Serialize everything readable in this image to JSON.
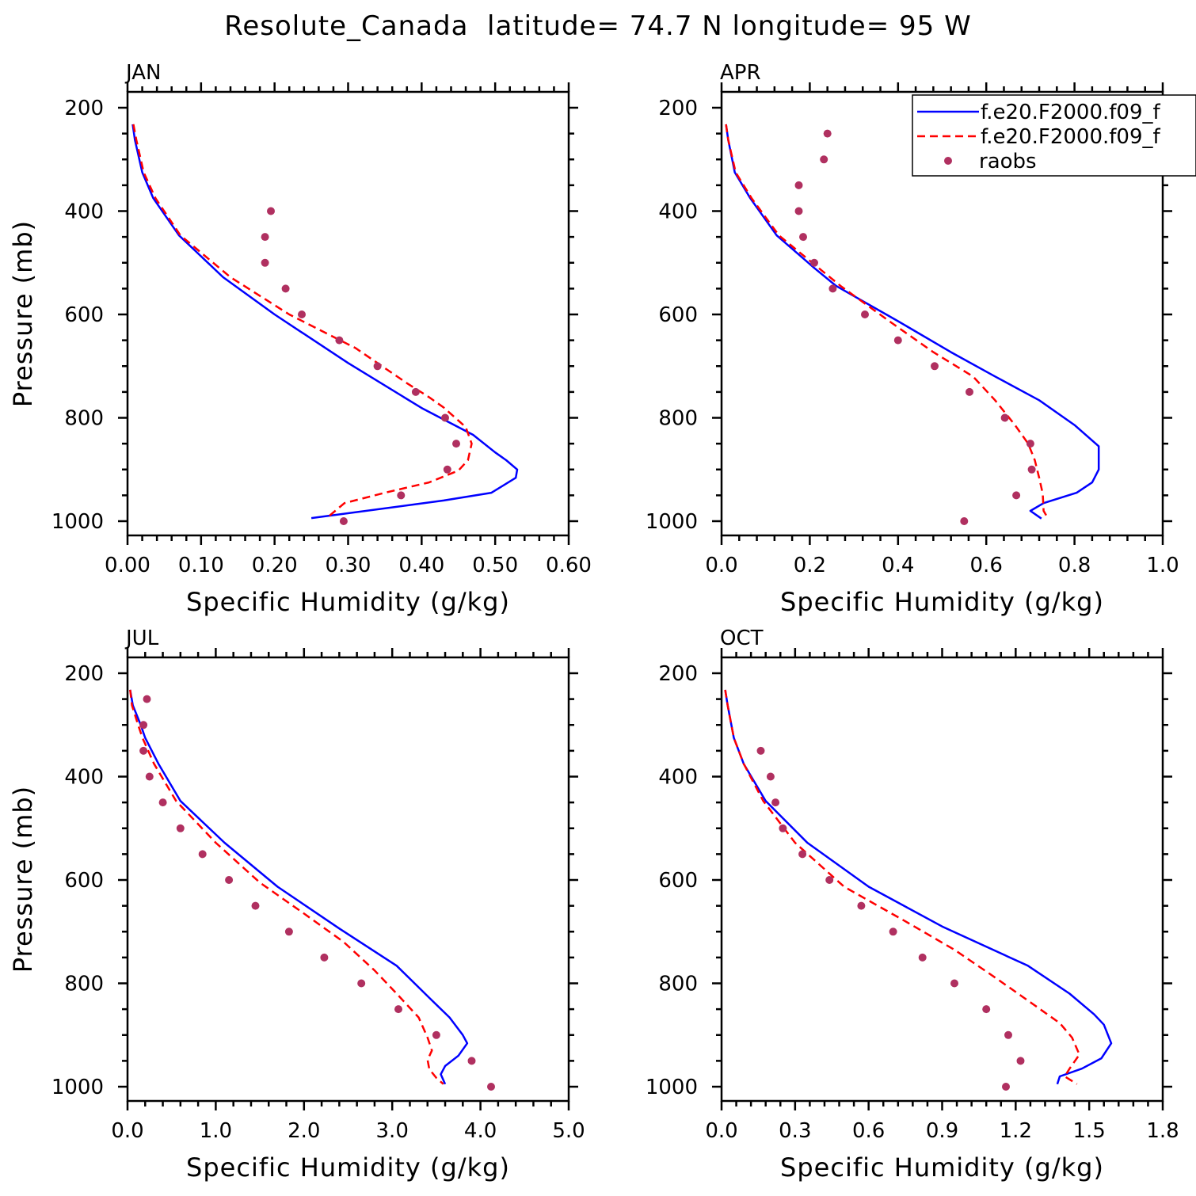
{
  "title": "Resolute_Canada  latitude= 74.7 N longitude= 95 W",
  "legend": {
    "entries": [
      {
        "label": "f.e20.F2000.f09_f",
        "style": "solid",
        "color": "#0000ff"
      },
      {
        "label": "f.e20.F2000.f09_f",
        "style": "dashed",
        "color": "#ff0000"
      },
      {
        "label": "raobs",
        "style": "dots",
        "color": "#b03060"
      }
    ]
  },
  "chart_data": [
    {
      "type": "line",
      "panel": "JAN",
      "xlabel": "Specific Humidity (g/kg)",
      "ylabel": "Pressure (mb)",
      "xlim": [
        0,
        0.6
      ],
      "ylim": [
        1000,
        200
      ],
      "xticks": [
        0,
        0.1,
        0.2,
        0.3,
        0.4,
        0.5,
        0.6
      ],
      "xticklabels": [
        "0.00",
        "0.10",
        "0.20",
        "0.30",
        "0.40",
        "0.50",
        "0.60"
      ],
      "yticks": [
        200,
        400,
        600,
        800,
        1000
      ],
      "yticklabels": [
        "200",
        "400",
        "600",
        "800",
        "1000"
      ],
      "series": [
        {
          "style": "solid",
          "color": "#0000ff",
          "points": [
            [
              0.007,
              232
            ],
            [
              0.01,
              262
            ],
            [
              0.02,
              325
            ],
            [
              0.035,
              375
            ],
            [
              0.07,
              447
            ],
            [
              0.13,
              528
            ],
            [
              0.2,
              600
            ],
            [
              0.3,
              694
            ],
            [
              0.4,
              781
            ],
            [
              0.47,
              833
            ],
            [
              0.5,
              867
            ],
            [
              0.515,
              882
            ],
            [
              0.53,
              900
            ],
            [
              0.528,
              916
            ],
            [
              0.495,
              945
            ],
            [
              0.43,
              960
            ],
            [
              0.25,
              994
            ]
          ]
        },
        {
          "style": "dashed",
          "color": "#ff0000",
          "points": [
            [
              0.008,
              232
            ],
            [
              0.012,
              262
            ],
            [
              0.022,
              325
            ],
            [
              0.038,
              375
            ],
            [
              0.072,
              447
            ],
            [
              0.14,
              528
            ],
            [
              0.22,
              600
            ],
            [
              0.31,
              665
            ],
            [
              0.38,
              733
            ],
            [
              0.41,
              760
            ],
            [
              0.43,
              780
            ],
            [
              0.46,
              818
            ],
            [
              0.468,
              850
            ],
            [
              0.463,
              882
            ],
            [
              0.45,
              902
            ],
            [
              0.41,
              925
            ],
            [
              0.35,
              945
            ],
            [
              0.295,
              965
            ],
            [
              0.27,
              995
            ]
          ]
        }
      ],
      "raobs": [
        [
          0.195,
          400
        ],
        [
          0.187,
          450
        ],
        [
          0.187,
          500
        ],
        [
          0.215,
          550
        ],
        [
          0.237,
          600
        ],
        [
          0.288,
          650
        ],
        [
          0.34,
          700
        ],
        [
          0.392,
          750
        ],
        [
          0.432,
          800
        ],
        [
          0.447,
          850
        ],
        [
          0.435,
          900
        ],
        [
          0.372,
          950
        ],
        [
          0.294,
          1000
        ]
      ]
    },
    {
      "type": "line",
      "panel": "APR",
      "xlabel": "Specific Humidity (g/kg)",
      "ylabel": "",
      "xlim": [
        0,
        1.0
      ],
      "ylim": [
        1000,
        200
      ],
      "xticks": [
        0,
        0.2,
        0.4,
        0.6,
        0.8,
        1.0
      ],
      "xticklabels": [
        "0.0",
        "0.2",
        "0.4",
        "0.6",
        "0.8",
        "1.0"
      ],
      "yticks": [
        200,
        400,
        600,
        800,
        1000
      ],
      "yticklabels": [
        "200",
        "400",
        "600",
        "800",
        "1000"
      ],
      "series": [
        {
          "style": "solid",
          "color": "#0000ff",
          "points": [
            [
              0.01,
              232
            ],
            [
              0.015,
              262
            ],
            [
              0.03,
              325
            ],
            [
              0.065,
              375
            ],
            [
              0.125,
              447
            ],
            [
              0.21,
              510
            ],
            [
              0.26,
              545
            ],
            [
              0.4,
              613
            ],
            [
              0.52,
              673
            ],
            [
              0.62,
              720
            ],
            [
              0.72,
              766
            ],
            [
              0.8,
              814
            ],
            [
              0.855,
              855
            ],
            [
              0.855,
              900
            ],
            [
              0.84,
              925
            ],
            [
              0.805,
              945
            ],
            [
              0.73,
              965
            ],
            [
              0.7,
              980
            ],
            [
              0.725,
              995
            ]
          ]
        },
        {
          "style": "dashed",
          "color": "#ff0000",
          "points": [
            [
              0.01,
              232
            ],
            [
              0.015,
              262
            ],
            [
              0.032,
              325
            ],
            [
              0.068,
              375
            ],
            [
              0.13,
              447
            ],
            [
              0.22,
              510
            ],
            [
              0.27,
              545
            ],
            [
              0.38,
              613
            ],
            [
              0.48,
              673
            ],
            [
              0.57,
              720
            ],
            [
              0.62,
              766
            ],
            [
              0.665,
              814
            ],
            [
              0.695,
              850
            ],
            [
              0.71,
              882
            ],
            [
              0.72,
              916
            ],
            [
              0.728,
              947
            ],
            [
              0.73,
              980
            ],
            [
              0.74,
              995
            ]
          ]
        }
      ],
      "raobs": [
        [
          0.24,
          250
        ],
        [
          0.232,
          300
        ],
        [
          0.175,
          350
        ],
        [
          0.175,
          400
        ],
        [
          0.185,
          450
        ],
        [
          0.21,
          500
        ],
        [
          0.252,
          550
        ],
        [
          0.325,
          600
        ],
        [
          0.4,
          650
        ],
        [
          0.483,
          700
        ],
        [
          0.562,
          750
        ],
        [
          0.642,
          800
        ],
        [
          0.7,
          850
        ],
        [
          0.703,
          900
        ],
        [
          0.668,
          950
        ],
        [
          0.55,
          1000
        ]
      ]
    },
    {
      "type": "line",
      "panel": "JUL",
      "xlabel": "Specific Humidity (g/kg)",
      "ylabel": "Pressure (mb)",
      "xlim": [
        0,
        5.0
      ],
      "ylim": [
        1000,
        200
      ],
      "xticks": [
        0,
        1,
        2,
        3,
        4,
        5
      ],
      "xticklabels": [
        "0.0",
        "1.0",
        "2.0",
        "3.0",
        "4.0",
        "5.0"
      ],
      "yticks": [
        200,
        400,
        600,
        800,
        1000
      ],
      "yticklabels": [
        "200",
        "400",
        "600",
        "800",
        "1000"
      ],
      "series": [
        {
          "style": "solid",
          "color": "#0000ff",
          "points": [
            [
              0.03,
              232
            ],
            [
              0.06,
              262
            ],
            [
              0.15,
              300
            ],
            [
              0.2,
              325
            ],
            [
              0.35,
              375
            ],
            [
              0.6,
              447
            ],
            [
              1.1,
              528
            ],
            [
              1.7,
              613
            ],
            [
              2.4,
              694
            ],
            [
              3.05,
              766
            ],
            [
              3.45,
              833
            ],
            [
              3.65,
              866
            ],
            [
              3.8,
              900
            ],
            [
              3.85,
              916
            ],
            [
              3.75,
              940
            ],
            [
              3.6,
              960
            ],
            [
              3.55,
              976
            ],
            [
              3.6,
              995
            ]
          ]
        },
        {
          "style": "dashed",
          "color": "#ff0000",
          "points": [
            [
              0.03,
              232
            ],
            [
              0.05,
              262
            ],
            [
              0.12,
              300
            ],
            [
              0.17,
              325
            ],
            [
              0.3,
              375
            ],
            [
              0.55,
              447
            ],
            [
              1.0,
              528
            ],
            [
              1.5,
              605
            ],
            [
              2.0,
              665
            ],
            [
              2.45,
              720
            ],
            [
              2.8,
              775
            ],
            [
              3.05,
              820
            ],
            [
              3.3,
              866
            ],
            [
              3.4,
              905
            ],
            [
              3.45,
              930
            ],
            [
              3.4,
              948
            ],
            [
              3.42,
              966
            ],
            [
              3.5,
              983
            ],
            [
              3.58,
              995
            ]
          ]
        }
      ],
      "raobs": [
        [
          0.22,
          250
        ],
        [
          0.18,
          300
        ],
        [
          0.18,
          350
        ],
        [
          0.25,
          400
        ],
        [
          0.4,
          450
        ],
        [
          0.6,
          500
        ],
        [
          0.85,
          550
        ],
        [
          1.15,
          600
        ],
        [
          1.45,
          650
        ],
        [
          1.83,
          700
        ],
        [
          2.23,
          750
        ],
        [
          2.65,
          800
        ],
        [
          3.07,
          850
        ],
        [
          3.5,
          900
        ],
        [
          3.9,
          950
        ],
        [
          4.12,
          1000
        ]
      ]
    },
    {
      "type": "line",
      "panel": "OCT",
      "xlabel": "Specific Humidity (g/kg)",
      "ylabel": "",
      "xlim": [
        0,
        1.8
      ],
      "ylim": [
        1000,
        200
      ],
      "xticks": [
        0,
        0.3,
        0.6,
        0.9,
        1.2,
        1.5,
        1.8
      ],
      "xticklabels": [
        "0.0",
        "0.3",
        "0.6",
        "0.9",
        "1.2",
        "1.5",
        "1.8"
      ],
      "yticks": [
        200,
        400,
        600,
        800,
        1000
      ],
      "yticklabels": [
        "200",
        "400",
        "600",
        "800",
        "1000"
      ],
      "series": [
        {
          "style": "solid",
          "color": "#0000ff",
          "points": [
            [
              0.015,
              232
            ],
            [
              0.025,
              262
            ],
            [
              0.05,
              325
            ],
            [
              0.09,
              375
            ],
            [
              0.18,
              447
            ],
            [
              0.35,
              528
            ],
            [
              0.6,
              613
            ],
            [
              0.9,
              690
            ],
            [
              1.25,
              766
            ],
            [
              1.42,
              820
            ],
            [
              1.52,
              860
            ],
            [
              1.56,
              880
            ],
            [
              1.59,
              916
            ],
            [
              1.55,
              945
            ],
            [
              1.47,
              965
            ],
            [
              1.38,
              980
            ],
            [
              1.37,
              995
            ]
          ]
        },
        {
          "style": "dashed",
          "color": "#ff0000",
          "points": [
            [
              0.015,
              232
            ],
            [
              0.025,
              262
            ],
            [
              0.05,
              325
            ],
            [
              0.09,
              375
            ],
            [
              0.17,
              447
            ],
            [
              0.3,
              528
            ],
            [
              0.5,
              613
            ],
            [
              0.75,
              680
            ],
            [
              0.95,
              735
            ],
            [
              1.12,
              790
            ],
            [
              1.27,
              840
            ],
            [
              1.38,
              877
            ],
            [
              1.43,
              905
            ],
            [
              1.46,
              938
            ],
            [
              1.42,
              965
            ],
            [
              1.4,
              980
            ],
            [
              1.45,
              995
            ]
          ]
        }
      ],
      "raobs": [
        [
          0.16,
          350
        ],
        [
          0.2,
          400
        ],
        [
          0.22,
          450
        ],
        [
          0.25,
          500
        ],
        [
          0.33,
          550
        ],
        [
          0.44,
          600
        ],
        [
          0.57,
          650
        ],
        [
          0.7,
          700
        ],
        [
          0.82,
          750
        ],
        [
          0.95,
          800
        ],
        [
          1.08,
          850
        ],
        [
          1.17,
          900
        ],
        [
          1.22,
          950
        ],
        [
          1.16,
          1000
        ]
      ]
    }
  ]
}
